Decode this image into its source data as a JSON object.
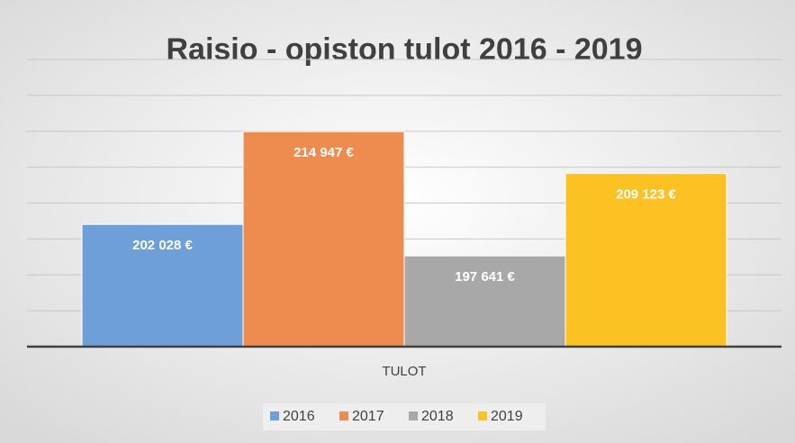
{
  "chart_data": {
    "type": "bar",
    "title": "Raisio - opiston tulot 2016 - 2019",
    "categories": [
      "TULOT"
    ],
    "series": [
      {
        "name": "2016",
        "color": "#6f9fd8",
        "values": [
          202028
        ],
        "value_labels": [
          "202 028 €"
        ]
      },
      {
        "name": "2017",
        "color": "#ee8b4e",
        "values": [
          214947
        ],
        "value_labels": [
          "214 947 €"
        ]
      },
      {
        "name": "2018",
        "color": "#a8a8a8",
        "values": [
          197641
        ],
        "value_labels": [
          "197 641 €"
        ]
      },
      {
        "name": "2019",
        "color": "#fcc224",
        "values": [
          209123
        ],
        "value_labels": [
          "209 123 €"
        ]
      }
    ],
    "ylim": [
      185000,
      225000
    ],
    "yticks": [
      185000,
      190000,
      195000,
      200000,
      205000,
      210000,
      215000,
      220000,
      225000
    ],
    "grid": true,
    "legend": "bottom"
  }
}
